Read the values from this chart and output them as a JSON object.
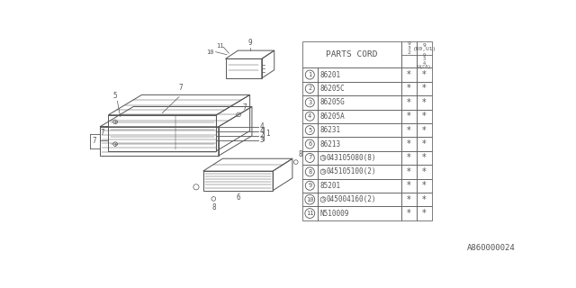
{
  "background_color": "#ffffff",
  "figure_code": "A860000024",
  "parts": [
    {
      "num": "1",
      "code": "86201",
      "s": false
    },
    {
      "num": "2",
      "code": "86205C",
      "s": false
    },
    {
      "num": "3",
      "code": "86205G",
      "s": false
    },
    {
      "num": "4",
      "code": "86205A",
      "s": false
    },
    {
      "num": "5",
      "code": "86231",
      "s": false
    },
    {
      "num": "6",
      "code": "86213",
      "s": false
    },
    {
      "num": "7",
      "code": "043105080(8)",
      "s": true
    },
    {
      "num": "8",
      "code": "045105100(2)",
      "s": true
    },
    {
      "num": "9",
      "code": "85201",
      "s": false
    },
    {
      "num": "10",
      "code": "045004160(2)",
      "s": true
    },
    {
      "num": "11",
      "code": "N510009",
      "s": false
    }
  ],
  "line_color": "#555555",
  "table_line_color": "#666666"
}
